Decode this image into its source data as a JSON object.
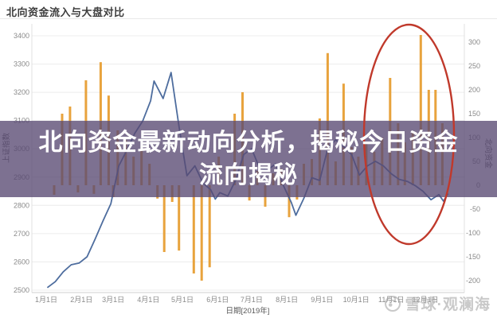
{
  "page": {
    "title": "北向资金流入与大盘对比"
  },
  "overlay": {
    "line1": "北向资金最新动向分析，揭秘今日资金",
    "line2": "流向揭秘",
    "bg_color": "rgba(88,73,114,0.78)",
    "text_color": "#ffffff"
  },
  "watermark": {
    "text": "雪球·观澜海",
    "icon": "snowball-logo",
    "color": "rgba(165,165,165,0.6)"
  },
  "annotation": {
    "shape": "ellipse",
    "color": "#c0392b"
  },
  "colors": {
    "bar": "#e8a33d",
    "line": "#4e6d9e",
    "grid": "#ececec",
    "axis_border": "#e0e0e0",
    "axis_bottom": "#cfcfcf"
  },
  "chart_data": {
    "type": "combo",
    "title": "北向资金流入与大盘对比",
    "grid": true,
    "legend": false,
    "x_axis": {
      "title": "日期[2019年]",
      "tick_labels": [
        "1月1日",
        "2月1日",
        "3月1日",
        "4月1日",
        "5月1日",
        "6月1日",
        "7月1日",
        "8月1日",
        "9月1日",
        "10月1日",
        "11月1日",
        "12月1日"
      ],
      "tick_days": [
        1,
        32,
        60,
        91,
        121,
        152,
        182,
        213,
        244,
        274,
        305,
        335
      ]
    },
    "y_left": {
      "title": "上证指数",
      "ticks": [
        3400,
        3300,
        3200,
        3100,
        3000,
        2900,
        2800,
        2700,
        2600,
        2500
      ],
      "range": [
        2500,
        3400
      ]
    },
    "y_right": {
      "title": "北向资金",
      "ticks": [
        300,
        250,
        200,
        150,
        100,
        50,
        0,
        -50,
        -100,
        -150,
        -200
      ],
      "range": [
        -200,
        300
      ]
    },
    "series": [
      {
        "name": "北向资金",
        "type": "bar",
        "axis": "right",
        "color": "#e8a33d",
        "points": [
          [
            8,
            -20
          ],
          [
            15,
            150
          ],
          [
            22,
            165
          ],
          [
            29,
            -15
          ],
          [
            36,
            220
          ],
          [
            43,
            -18
          ],
          [
            49,
            258
          ],
          [
            56,
            188
          ],
          [
            60,
            -25
          ],
          [
            64,
            115
          ],
          [
            71,
            95
          ],
          [
            78,
            60
          ],
          [
            85,
            80
          ],
          [
            92,
            45
          ],
          [
            99,
            -28
          ],
          [
            105,
            -140
          ],
          [
            112,
            -35
          ],
          [
            118,
            -137
          ],
          [
            131,
            -185
          ],
          [
            138,
            -200
          ],
          [
            145,
            -172
          ],
          [
            153,
            60
          ],
          [
            160,
            40
          ],
          [
            167,
            150
          ],
          [
            174,
            195
          ],
          [
            180,
            -32
          ],
          [
            187,
            30
          ],
          [
            194,
            -45
          ],
          [
            201,
            25
          ],
          [
            208,
            35
          ],
          [
            215,
            -67
          ],
          [
            222,
            -30
          ],
          [
            228,
            45
          ],
          [
            235,
            55
          ],
          [
            242,
            140
          ],
          [
            249,
            277
          ],
          [
            256,
            50
          ],
          [
            263,
            213
          ],
          [
            270,
            80
          ],
          [
            276,
            60
          ],
          [
            283,
            90
          ],
          [
            290,
            70
          ],
          [
            297,
            100
          ],
          [
            304,
            225
          ],
          [
            311,
            130
          ],
          [
            317,
            90
          ],
          [
            324,
            110
          ],
          [
            331,
            315
          ],
          [
            338,
            200
          ],
          [
            344,
            200
          ],
          [
            350,
            130
          ]
        ]
      },
      {
        "name": "上证指数",
        "type": "line",
        "axis": "left",
        "color": "#4e6d9e",
        "points": [
          [
            2,
            2509
          ],
          [
            9,
            2530
          ],
          [
            16,
            2565
          ],
          [
            23,
            2590
          ],
          [
            30,
            2596
          ],
          [
            37,
            2618
          ],
          [
            44,
            2680
          ],
          [
            51,
            2745
          ],
          [
            58,
            2806
          ],
          [
            65,
            2940
          ],
          [
            72,
            2995
          ],
          [
            79,
            3055
          ],
          [
            86,
            3098
          ],
          [
            93,
            3170
          ],
          [
            96,
            3240
          ],
          [
            104,
            3178
          ],
          [
            111,
            3270
          ],
          [
            118,
            3080
          ],
          [
            125,
            2905
          ],
          [
            132,
            2940
          ],
          [
            139,
            2880
          ],
          [
            146,
            2855
          ],
          [
            150,
            2822
          ],
          [
            154,
            2845
          ],
          [
            161,
            2833
          ],
          [
            168,
            2890
          ],
          [
            175,
            2980
          ],
          [
            182,
            3000
          ],
          [
            189,
            2932
          ],
          [
            196,
            2925
          ],
          [
            203,
            2947
          ],
          [
            210,
            2870
          ],
          [
            217,
            2810
          ],
          [
            221,
            2765
          ],
          [
            228,
            2825
          ],
          [
            235,
            2898
          ],
          [
            242,
            2888
          ],
          [
            249,
            3000
          ],
          [
            256,
            3032
          ],
          [
            263,
            3008
          ],
          [
            270,
            2980
          ],
          [
            277,
            2907
          ],
          [
            284,
            2940
          ],
          [
            291,
            2956
          ],
          [
            298,
            2940
          ],
          [
            305,
            2912
          ],
          [
            312,
            2892
          ],
          [
            319,
            2885
          ],
          [
            326,
            2870
          ],
          [
            333,
            2850
          ],
          [
            340,
            2820
          ],
          [
            347,
            2838
          ],
          [
            351,
            2815
          ],
          [
            355,
            2842
          ]
        ]
      }
    ],
    "annotation_ellipse": {
      "note": "red ellipse highlighting Oct-Nov inflow spike",
      "color": "#c0392b"
    }
  }
}
